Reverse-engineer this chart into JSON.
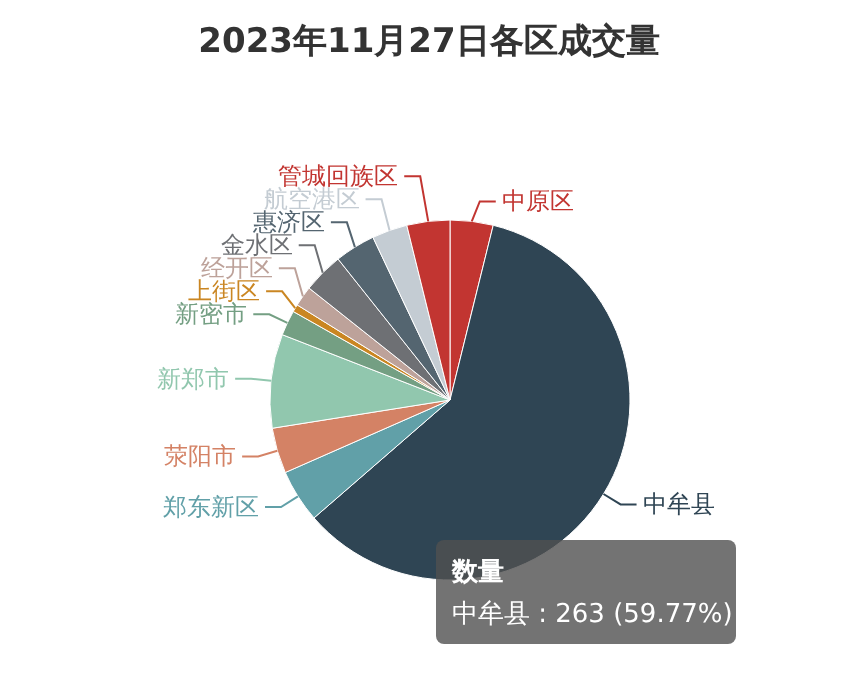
{
  "chart_data": {
    "type": "pie",
    "title": "2023年11月27日各区成交量",
    "categories": [
      "中原区",
      "中牟县",
      "郑东新区",
      "荥阳市",
      "新郑市",
      "新密市",
      "上街区",
      "经开区",
      "金水区",
      "惠济区",
      "航空港区",
      "管城回族区"
    ],
    "values": [
      3.86,
      59.77,
      4.77,
      4.09,
      8.42,
      2.27,
      0.68,
      1.82,
      3.64,
      3.64,
      3.18,
      3.86
    ],
    "colors": [
      "#c23531",
      "#2f4554",
      "#61a0a8",
      "#d48265",
      "#91c7ae",
      "#749f83",
      "#ca8622",
      "#bda29a",
      "#6e7074",
      "#546570",
      "#c4ccd3",
      "#c23531"
    ],
    "annotations": [
      "数量",
      "中牟县 : 263 (59.77%)"
    ]
  }
}
